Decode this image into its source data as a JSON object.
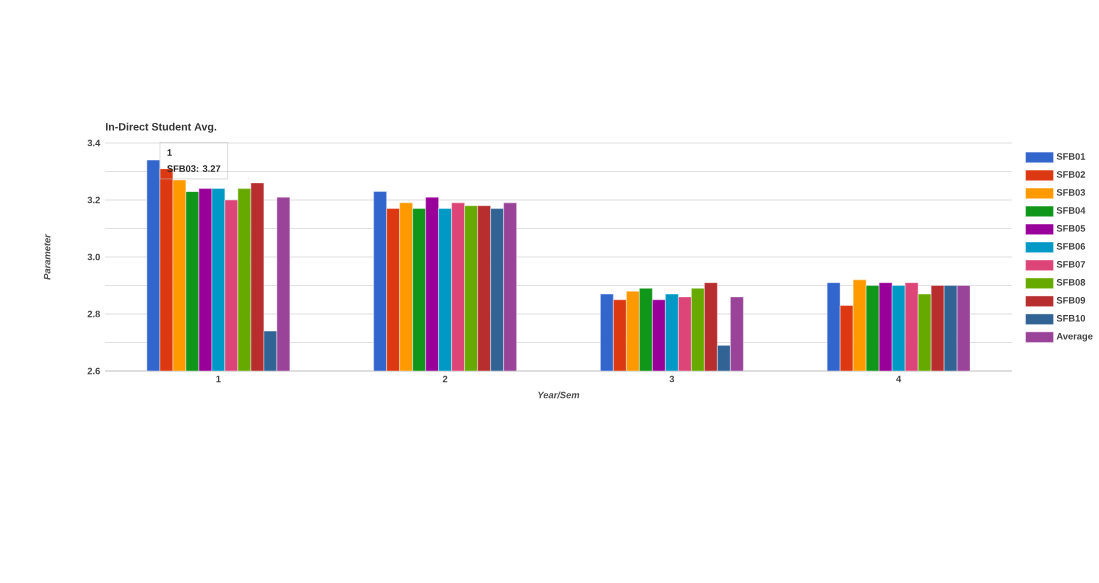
{
  "chart_data": {
    "type": "bar",
    "title": "In-Direct Student Avg.",
    "xlabel": "Year/Sem",
    "ylabel": "Parameter",
    "categories": [
      "1",
      "2",
      "3",
      "4"
    ],
    "series": [
      {
        "name": "SFB01",
        "color": "#3366cc",
        "values": [
          3.34,
          3.23,
          2.87,
          2.91
        ]
      },
      {
        "name": "SFB02",
        "color": "#dc3912",
        "values": [
          3.31,
          3.17,
          2.85,
          2.83
        ]
      },
      {
        "name": "SFB03",
        "color": "#ff9900",
        "values": [
          3.27,
          3.19,
          2.88,
          2.92
        ]
      },
      {
        "name": "SFB04",
        "color": "#109618",
        "values": [
          3.23,
          3.17,
          2.89,
          2.9
        ]
      },
      {
        "name": "SFB05",
        "color": "#990099",
        "values": [
          3.24,
          3.21,
          2.85,
          2.91
        ]
      },
      {
        "name": "SFB06",
        "color": "#0099c6",
        "values": [
          3.24,
          3.17,
          2.87,
          2.9
        ]
      },
      {
        "name": "SFB07",
        "color": "#dd4477",
        "values": [
          3.2,
          3.19,
          2.86,
          2.91
        ]
      },
      {
        "name": "SFB08",
        "color": "#66aa00",
        "values": [
          3.24,
          3.18,
          2.89,
          2.87
        ]
      },
      {
        "name": "SFB09",
        "color": "#b82e2e",
        "values": [
          3.26,
          3.18,
          2.91,
          2.9
        ]
      },
      {
        "name": "SFB10",
        "color": "#316395",
        "values": [
          2.74,
          3.17,
          2.69,
          2.9
        ]
      },
      {
        "name": "Average",
        "color": "#994499",
        "values": [
          3.21,
          3.19,
          2.86,
          2.9
        ]
      }
    ],
    "ylim": [
      2.6,
      3.4
    ],
    "yticks": [
      2.6,
      {
        "value": 2.7,
        "label": null
      },
      2.8,
      {
        "value": 2.9,
        "label": null
      },
      {
        "value": 3.0,
        "label": "3.0"
      },
      {
        "value": 3.1,
        "label": null
      },
      3.2,
      {
        "value": 3.3,
        "label": null
      },
      3.4
    ],
    "grid": "y",
    "legend": "right",
    "annotations": [
      "1",
      "SFB03: 3.27"
    ]
  }
}
